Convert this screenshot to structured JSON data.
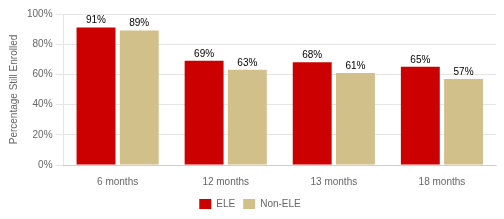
{
  "chart_data": {
    "type": "bar",
    "categories": [
      "6 months",
      "12 months",
      "13 months",
      "18 months"
    ],
    "series": [
      {
        "name": "ELE",
        "color": "#CC0000",
        "values": [
          91,
          69,
          68,
          65
        ],
        "value_labels": [
          "91%",
          "69%",
          "68%",
          "65%"
        ]
      },
      {
        "name": "Non-ELE",
        "color": "#D2C08A",
        "values": [
          89,
          63,
          61,
          57
        ],
        "value_labels": [
          "89%",
          "63%",
          "61%",
          "57%"
        ]
      }
    ],
    "ylabel": "Percentage Still Enrolled",
    "ylim": [
      0,
      100
    ],
    "yticks": [
      {
        "value": 0,
        "label": "0%"
      },
      {
        "value": 20,
        "label": "20%"
      },
      {
        "value": 40,
        "label": "40%"
      },
      {
        "value": 60,
        "label": "60%"
      },
      {
        "value": 80,
        "label": "80%"
      },
      {
        "value": 100,
        "label": "100%"
      }
    ],
    "grid": true,
    "legend": "bottom",
    "data_labels": true
  }
}
